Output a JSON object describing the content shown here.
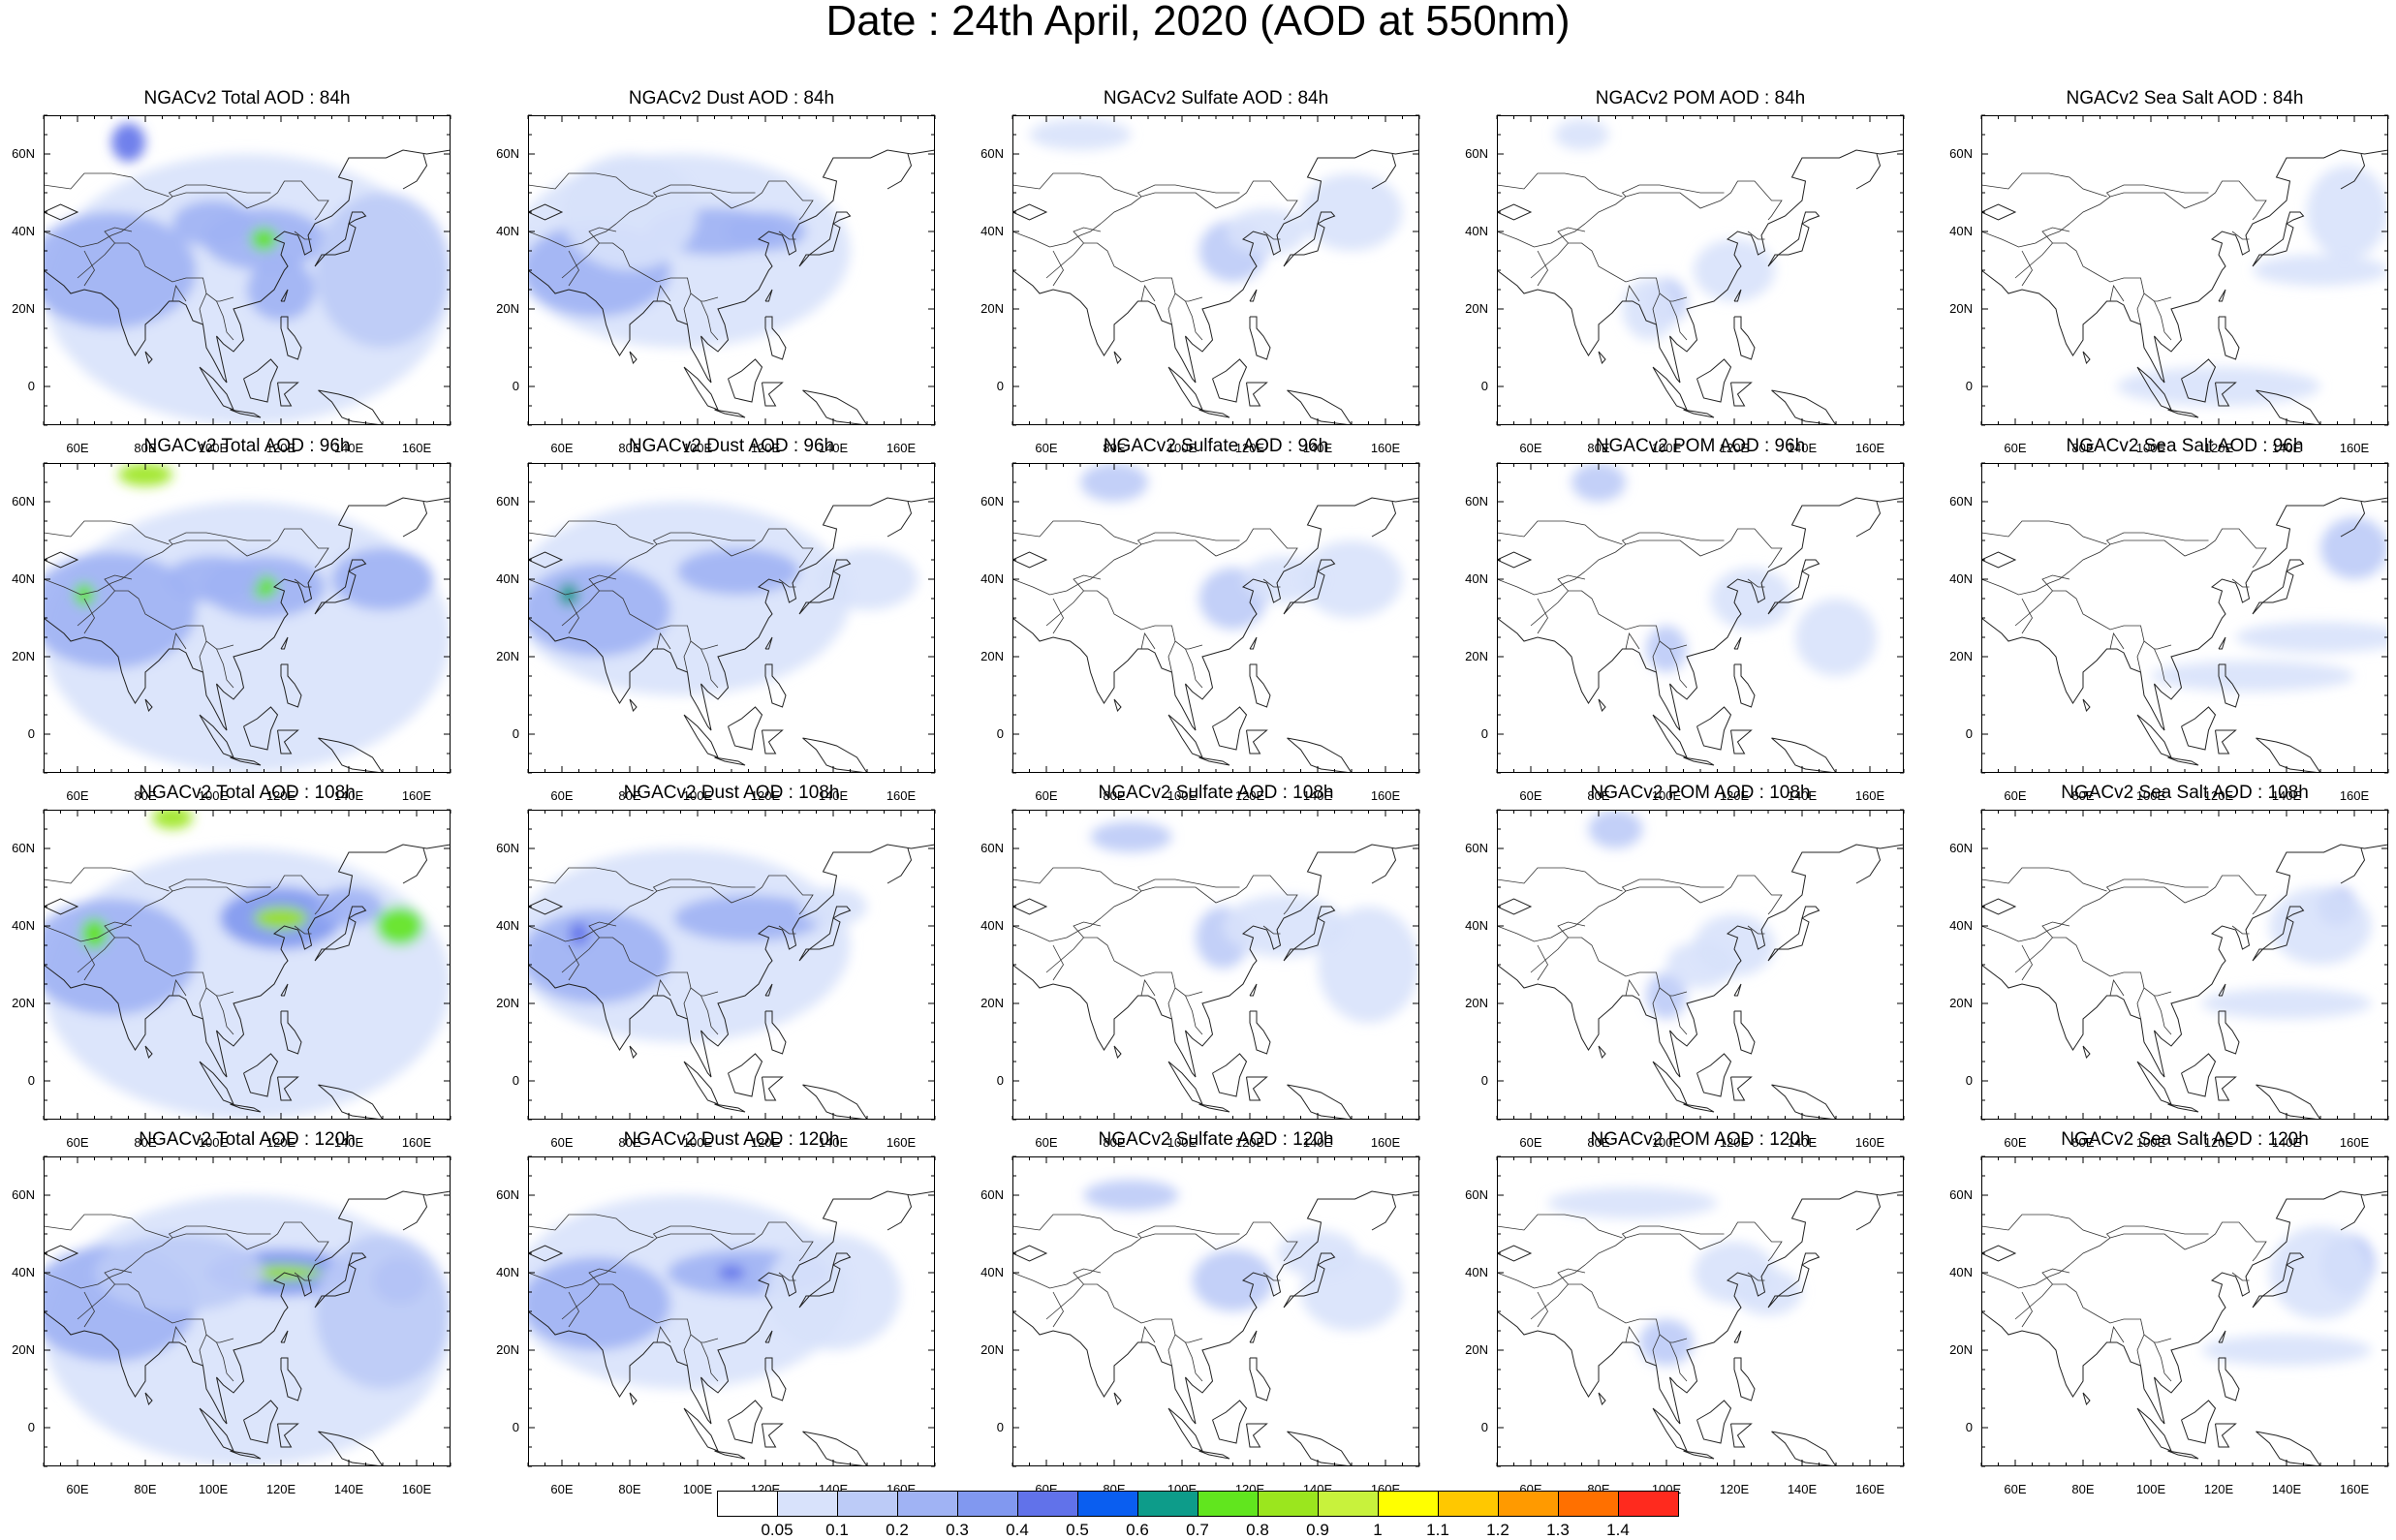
{
  "title": "Date : 24th April, 2020 (AOD at 550nm)",
  "rows": [
    "84h",
    "96h",
    "108h",
    "120h"
  ],
  "columns": [
    {
      "key": "total",
      "titles": [
        "NGACv2 Total AOD : 84h",
        "NGACv2 Total AOD : 96h",
        "NGACv2 Total AOD : 108h",
        "NGACv2 Total AOD : 120h"
      ]
    },
    {
      "key": "dust",
      "titles": [
        "NGACv2 Dust AOD : 84h",
        "NGACv2 Dust AOD : 96h",
        "NGACv2 Dust AOD : 108h",
        "NGACv2 Dust AOD : 120h"
      ]
    },
    {
      "key": "sulfate",
      "titles": [
        "NGACv2 Sulfate AOD : 84h",
        "NGACv2 Sulfate AOD : 96h",
        "NGACv2 Sulfate AOD : 108h",
        "NGACv2 Sulfate AOD : 120h"
      ]
    },
    {
      "key": "pom",
      "titles": [
        "NGACv2 POM AOD : 84h",
        "NGACv2 POM AOD : 96h",
        "NGACv2 POM AOD : 108h",
        "NGACv2 POM AOD : 120h"
      ]
    },
    {
      "key": "seasalt",
      "titles": [
        "NGACv2 Sea Salt AOD : 84h",
        "NGACv2 Sea Salt AOD : 96h",
        "NGACv2 Sea Salt AOD : 108h",
        "NGACv2 Sea Salt  AOD : 120h"
      ]
    }
  ],
  "lat_ticks": [
    "60N",
    "40N",
    "20N",
    "0"
  ],
  "lon_ticks": [
    "60E",
    "80E",
    "100E",
    "120E",
    "140E",
    "160E"
  ],
  "colorbar": {
    "labels": [
      "0.05",
      "0.1",
      "0.2",
      "0.3",
      "0.4",
      "0.5",
      "0.6",
      "0.7",
      "0.8",
      "0.9",
      "1",
      "1.1",
      "1.2",
      "1.3",
      "1.4"
    ],
    "colors": [
      "#ffffff",
      "#d8e2fb",
      "#bccbf7",
      "#a0b3f4",
      "#8198f0",
      "#6172ea",
      "#0a5ef0",
      "#0d9c8a",
      "#61e61e",
      "#9be61e",
      "#c8f23c",
      "#ffff00",
      "#ffc800",
      "#ff9a00",
      "#ff7000",
      "#ff2a1e"
    ]
  }
}
